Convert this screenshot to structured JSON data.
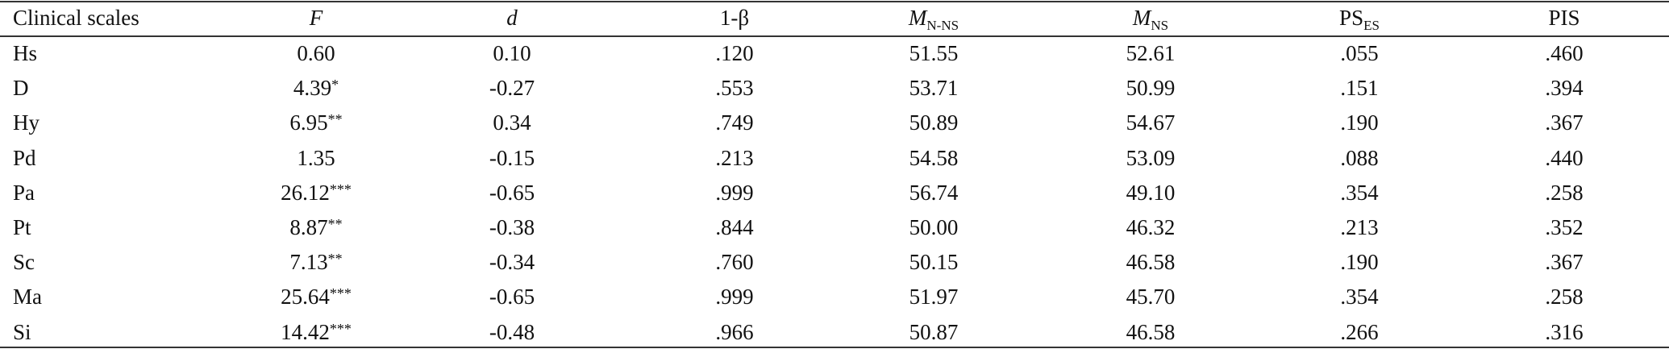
{
  "table": {
    "header": [
      {
        "text": "Clinical scales"
      },
      {
        "text": "F"
      },
      {
        "text": "d"
      },
      {
        "text": "1-β"
      },
      {
        "text": "M",
        "sub": "N-NS"
      },
      {
        "text": "M",
        "sub": "NS"
      },
      {
        "text": "PS",
        "sub": "ES"
      },
      {
        "text": "PIS"
      }
    ],
    "rows": [
      {
        "cells": [
          "Hs",
          "0.60",
          "0.10",
          ".120",
          "51.55",
          "52.61",
          ".055",
          ".460"
        ]
      },
      {
        "cells": [
          "D",
          "4.39",
          "-0.27",
          ".553",
          "53.71",
          "50.99",
          ".151",
          ".394"
        ],
        "sig": "*"
      },
      {
        "cells": [
          "Hy",
          "6.95",
          "0.34",
          ".749",
          "50.89",
          "54.67",
          ".190",
          ".367"
        ],
        "sig": "**"
      },
      {
        "cells": [
          "Pd",
          "1.35",
          "-0.15",
          ".213",
          "54.58",
          "53.09",
          ".088",
          ".440"
        ]
      },
      {
        "cells": [
          "Pa",
          "26.12",
          "-0.65",
          ".999",
          "56.74",
          "49.10",
          ".354",
          ".258"
        ],
        "sig": "***"
      },
      {
        "cells": [
          "Pt",
          "8.87",
          "-0.38",
          ".844",
          "50.00",
          "46.32",
          ".213",
          ".352"
        ],
        "sig": "**"
      },
      {
        "cells": [
          "Sc",
          "7.13",
          "-0.34",
          ".760",
          "50.15",
          "46.58",
          ".190",
          ".367"
        ],
        "sig": "**"
      },
      {
        "cells": [
          "Ma",
          "25.64",
          "-0.65",
          ".999",
          "51.97",
          "45.70",
          ".354",
          ".258"
        ],
        "sig": "***"
      },
      {
        "cells": [
          "Si",
          "14.42",
          "-0.48",
          ".966",
          "50.87",
          "46.58",
          ".266",
          ".316"
        ],
        "sig": "***"
      }
    ]
  }
}
